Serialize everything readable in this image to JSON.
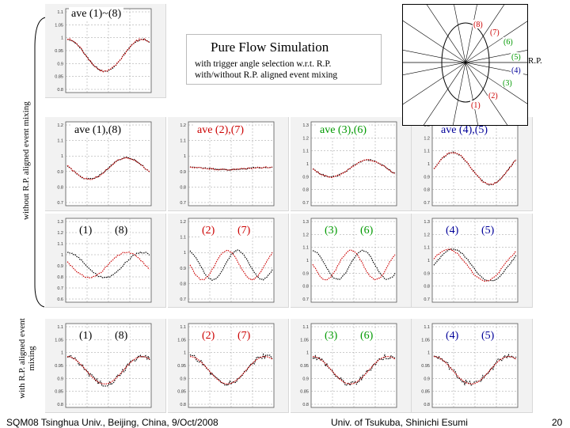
{
  "side_labels": {
    "without": "without R.P. aligned event mixing",
    "with": "with R.P. aligned event mixing"
  },
  "simulation_box": {
    "title": "Pure Flow Simulation",
    "line1": "with trigger angle selection w.r.t. R.P.",
    "line2": "with/without R.P. aligned event mixing"
  },
  "rp_diagram": {
    "labels": [
      "(8)",
      "(7)",
      "(6)",
      "(5)",
      "(4)",
      "(3)",
      "(2)",
      "(1)"
    ],
    "rp_label": "R.P.",
    "colors": [
      "#cc0000",
      "#cc0000",
      "#009900",
      "#009900",
      "#000099",
      "#009900",
      "#cc0000",
      "#cc0000"
    ]
  },
  "panel_labels": {
    "r0": [
      "ave (1)~(8)"
    ],
    "r1": [
      "ave (1),(8)",
      "ave (2),(7)",
      "ave (3),(6)",
      "ave (4),(5)"
    ],
    "r2": [
      [
        "(1)",
        "(8)"
      ],
      [
        "(2)",
        "(7)"
      ],
      [
        "(3)",
        "(6)"
      ],
      [
        "(4)",
        "(5)"
      ]
    ],
    "r3": [
      [
        "(1)",
        "(8)"
      ],
      [
        "(2)",
        "(7)"
      ],
      [
        "(3)",
        "(6)"
      ],
      [
        "(4)",
        "(5)"
      ]
    ]
  },
  "label_colors": {
    "c0": "#000000",
    "c1": "#cc0000",
    "c2": "#009900",
    "c3": "#000099"
  },
  "chart_data": [
    {
      "type": "line",
      "panel": "ave (1)~(8)",
      "yticks": [
        "1.1",
        "1.05",
        "1",
        "0.95",
        "0.9",
        "0.85",
        "0.8"
      ]
    },
    {
      "type": "line",
      "panel": "ave (1),(8)",
      "yticks": [
        "1.2",
        "1.1",
        "1",
        "0.9",
        "0.8",
        "0.7"
      ]
    },
    {
      "type": "line",
      "panel": "ave (2),(7)",
      "yticks": [
        "1.2",
        "1.1",
        "1",
        "0.9",
        "0.8",
        "0.7"
      ]
    },
    {
      "type": "line",
      "panel": "ave (3),(6)",
      "yticks": [
        "1.3",
        "1.2",
        "1.1",
        "1",
        "0.9",
        "0.8",
        "0.7"
      ]
    },
    {
      "type": "line",
      "panel": "ave (4),(5)",
      "yticks": [
        "1.3",
        "1.2",
        "1.1",
        "1",
        "0.9",
        "0.8",
        "0.7"
      ]
    },
    {
      "type": "line",
      "panel": "(1) (8)",
      "yticks": [
        "1.3",
        "1.2",
        "1.1",
        "1",
        "0.9",
        "0.8",
        "0.7",
        "0.6"
      ]
    },
    {
      "type": "line",
      "panel": "(2) (7)",
      "yticks": [
        "1.2",
        "1.1",
        "1",
        "0.9",
        "0.8",
        "0.7"
      ]
    },
    {
      "type": "line",
      "panel": "(3) (6)",
      "yticks": [
        "1.3",
        "1.2",
        "1.1",
        "1",
        "0.9",
        "0.8",
        "0.7"
      ]
    },
    {
      "type": "line",
      "panel": "(4) (5)",
      "yticks": [
        "1.3",
        "1.2",
        "1.1",
        "1",
        "0.9",
        "0.8",
        "0.7"
      ]
    },
    {
      "type": "line",
      "panel": "with (1) (8)",
      "yticks": [
        "1.1",
        "1.05",
        "1",
        "0.95",
        "0.9",
        "0.85",
        "0.8"
      ]
    },
    {
      "type": "line",
      "panel": "with (2) (7)",
      "yticks": [
        "1.1",
        "1.05",
        "1",
        "0.95",
        "0.9",
        "0.85",
        "0.8"
      ]
    },
    {
      "type": "line",
      "panel": "with (3) (6)",
      "yticks": [
        "1.1",
        "1.05",
        "1",
        "0.95",
        "0.9",
        "0.85",
        "0.8"
      ]
    },
    {
      "type": "line",
      "panel": "with (4) (5)",
      "yticks": [
        "1.1",
        "1.05",
        "1",
        "0.95",
        "0.9",
        "0.85",
        "0.8"
      ]
    }
  ],
  "footer": {
    "left": "SQM08 Tsinghua Univ., Beijing, China, 9/Oct/2008",
    "center": "Univ. of Tsukuba, Shinichi Esumi",
    "page": "20"
  }
}
